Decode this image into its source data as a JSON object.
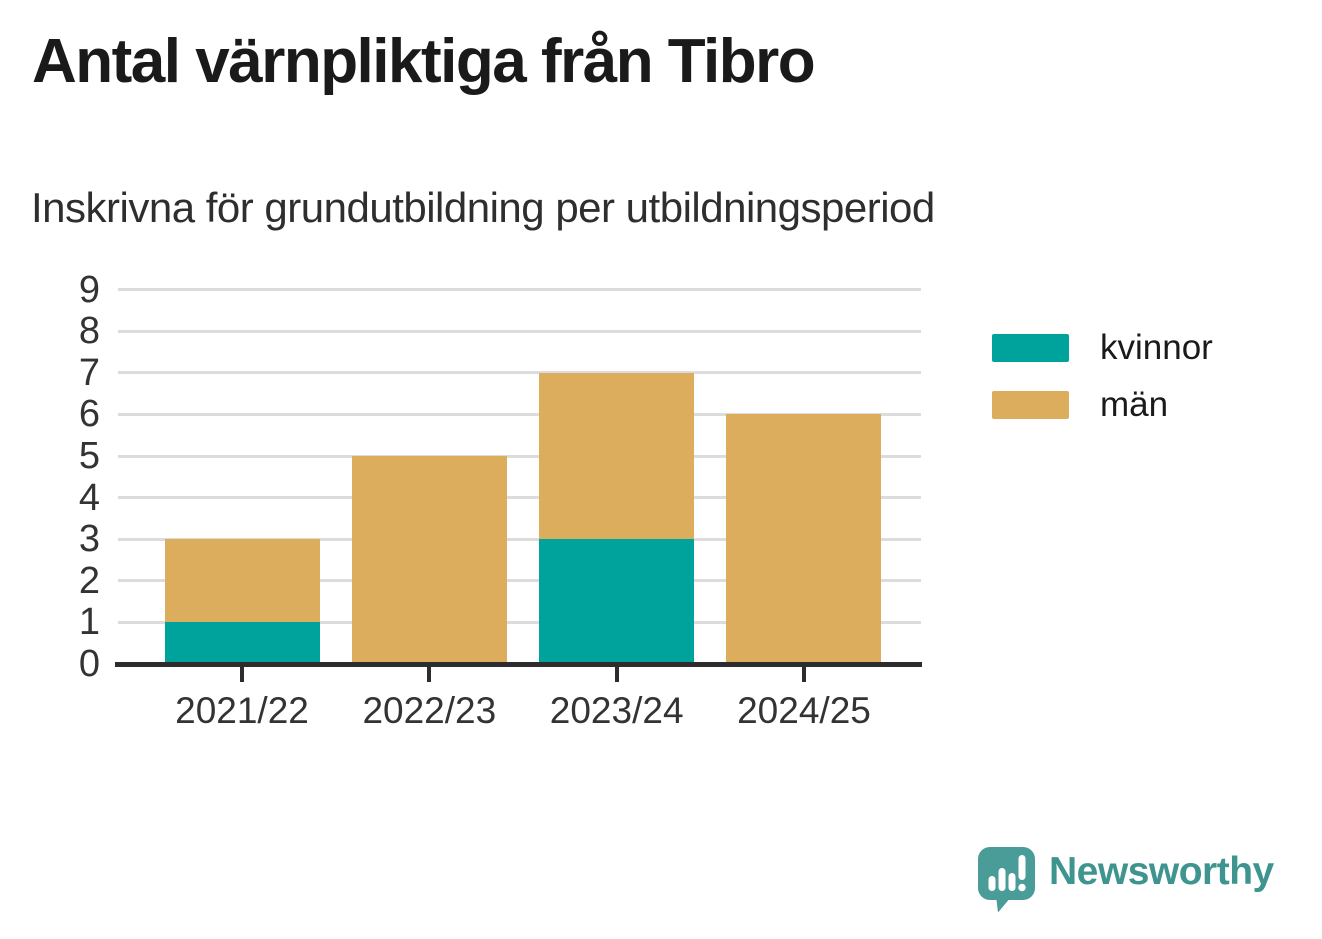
{
  "chart_data": {
    "type": "bar",
    "stacked": true,
    "title": "Antal värnpliktiga från Tibro",
    "subtitle": "Inskrivna för grundutbildning per utbildningsperiod",
    "categories": [
      "2021/22",
      "2022/23",
      "2023/24",
      "2024/25"
    ],
    "series": [
      {
        "name": "kvinnor",
        "color": "#00a39b",
        "values": [
          1,
          0,
          3,
          0
        ]
      },
      {
        "name": "män",
        "color": "#dcad5c",
        "values": [
          2,
          5,
          4,
          6
        ]
      }
    ],
    "totals": [
      3,
      5,
      7,
      6
    ],
    "ylim": [
      0,
      9
    ],
    "yticks": [
      0,
      1,
      2,
      3,
      4,
      5,
      6,
      7,
      8,
      9
    ],
    "grid": true,
    "legend_position": "right",
    "gridline_color": "#dcdcdc",
    "axis_color": "#2d2d2d",
    "label_color": "#333333"
  },
  "branding": {
    "logo_text": "Newsworthy",
    "logo_text_color": "#3e948f",
    "logo_mark_color": "#4a9c98"
  }
}
